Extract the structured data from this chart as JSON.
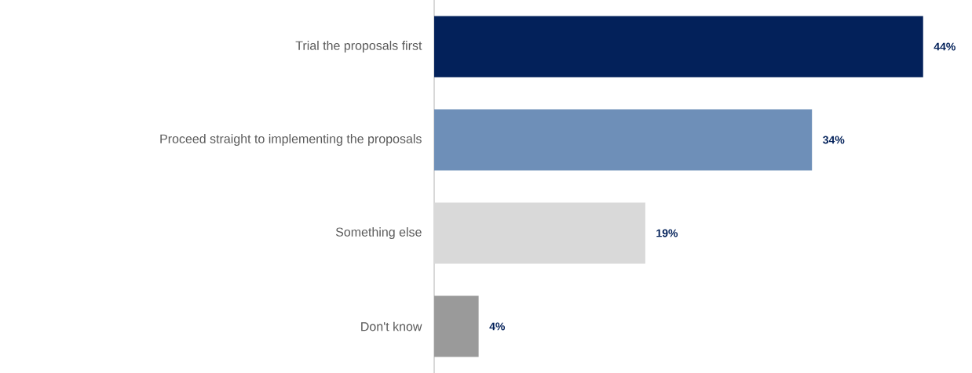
{
  "chart_data": {
    "type": "bar",
    "orientation": "horizontal",
    "categories": [
      "Trial the proposals first",
      "Proceed straight to implementing the proposals",
      "Something else",
      "Don't know"
    ],
    "values": [
      44,
      34,
      19,
      4
    ],
    "colors": [
      "#03215a",
      "#6e8fb8",
      "#d9d9d9",
      "#9a9a9a"
    ],
    "value_labels": [
      "44%",
      "34%",
      "19%",
      "4%"
    ]
  }
}
